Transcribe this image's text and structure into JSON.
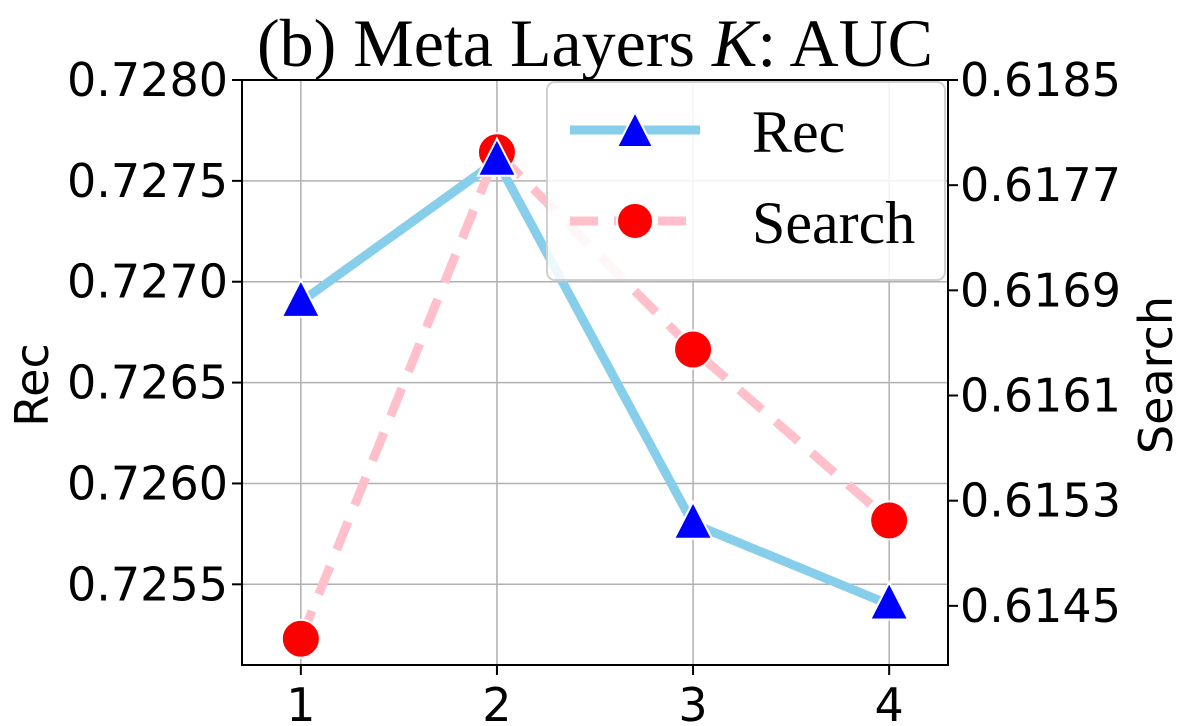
{
  "chart_data": {
    "type": "line",
    "title": "(b) Meta Layers ",
    "title_symbol": "K",
    "title_suffix": ": AUC",
    "x": [
      1,
      2,
      3,
      4
    ],
    "x_ticks": [
      "1",
      "2",
      "3",
      "4"
    ],
    "xlim": [
      0.7,
      4.3
    ],
    "y_left": {
      "label": "Rec",
      "ylim": [
        0.7251,
        0.728
      ],
      "ticks": [
        "0.7255",
        "0.7260",
        "0.7265",
        "0.7270",
        "0.7275",
        "0.7280"
      ],
      "tick_values": [
        0.7255,
        0.726,
        0.7265,
        0.727,
        0.7275,
        0.728
      ]
    },
    "y_right": {
      "label": "Search",
      "ylim": [
        0.61405,
        0.6185
      ],
      "ticks": [
        "0.6145",
        "0.6153",
        "0.6161",
        "0.6169",
        "0.6177",
        "0.6185"
      ],
      "tick_values": [
        0.6145,
        0.6153,
        0.6161,
        0.6169,
        0.6177,
        0.6185
      ]
    },
    "series": [
      {
        "name": "Rec",
        "axis": "left",
        "values": [
          0.7269,
          0.7276,
          0.7258,
          0.7254
        ],
        "line_color": "#87CEEB",
        "line_style": "solid",
        "marker": "triangle",
        "marker_color": "#0000FF"
      },
      {
        "name": "Search",
        "axis": "right",
        "values": [
          0.61425,
          0.61795,
          0.61645,
          0.61515
        ],
        "line_color": "#FFC0CB",
        "line_style": "dashed",
        "marker": "circle",
        "marker_color": "#FF0000"
      }
    ],
    "grid": true,
    "legend_position": "top-right"
  }
}
